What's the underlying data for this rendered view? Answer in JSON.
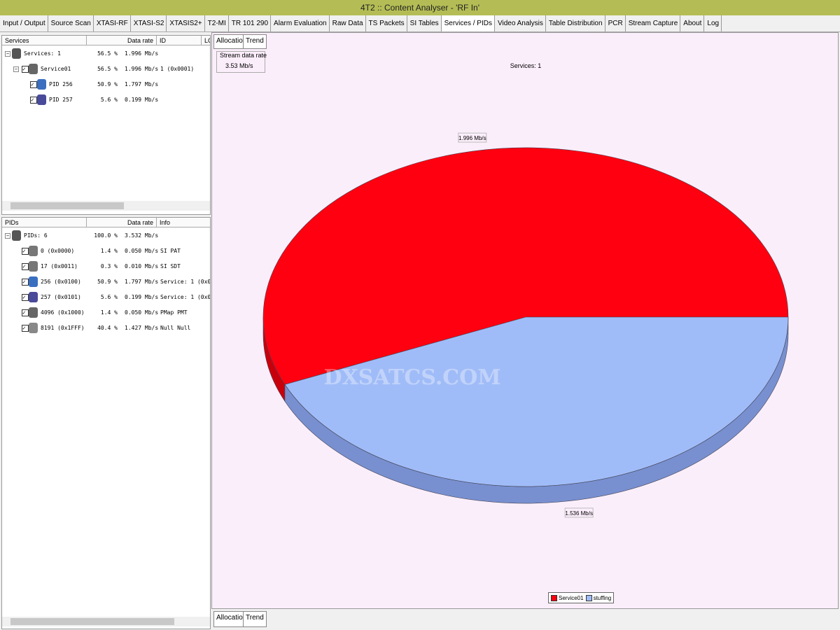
{
  "window": {
    "title": "4T2 :: Content Analyser - 'RF In'"
  },
  "tabs": [
    "Input / Output",
    "Source Scan",
    "XTASI-RF",
    "XTASI-S2",
    "XTASIS2+",
    "T2-MI",
    "TR 101 290",
    "Alarm Evaluation",
    "Raw Data",
    "TS Packets",
    "SI Tables",
    "Services / PIDs",
    "Video Analysis",
    "Table Distribution",
    "PCR",
    "Stream Capture",
    "About",
    "Log"
  ],
  "services": {
    "columns": [
      "Services",
      "Data rate",
      "ID",
      "LC"
    ],
    "rows": [
      {
        "name": "Services: 1",
        "percent": "56.5 %",
        "rate": "1.996 Mb/s"
      },
      {
        "name": "Service01",
        "percent": "56.5 %",
        "rate": "1.996 Mb/s",
        "id": "1 (0x0001)"
      },
      {
        "name": "PID 256",
        "percent": "50.9 %",
        "rate": "1.797 Mb/s"
      },
      {
        "name": "PID 257",
        "percent": "5.6 %",
        "rate": "0.199 Mb/s"
      }
    ]
  },
  "pids": {
    "columns": [
      "PIDs",
      "Data rate",
      "Info"
    ],
    "rows": [
      {
        "name": "PIDs: 6",
        "percent": "100.0 %",
        "rate": "3.532 Mb/s"
      },
      {
        "name": "0 (0x0000)",
        "percent": "1.4 %",
        "rate": "0.050 Mb/s",
        "info": "SI PAT"
      },
      {
        "name": "17 (0x0011)",
        "percent": "0.3 %",
        "rate": "0.010 Mb/s",
        "info": "SI SDT"
      },
      {
        "name": "256 (0x0100)",
        "percent": "50.9 %",
        "rate": "1.797 Mb/s",
        "info": "Service: 1 (0x00"
      },
      {
        "name": "257 (0x0101)",
        "percent": "5.6 %",
        "rate": "0.199 Mb/s",
        "info": "Service: 1 (0x00"
      },
      {
        "name": "4096 (0x1000)",
        "percent": "1.4 %",
        "rate": "0.050 Mb/s",
        "info": "PMap PMT"
      },
      {
        "name": "8191 (0x1FFF)",
        "percent": "40.4 %",
        "rate": "1.427 Mb/s",
        "info": "Null Null"
      }
    ]
  },
  "chart_tabs": [
    "Allocation",
    "Trend"
  ],
  "stream_rate": {
    "label": "Stream data rate",
    "value": "3.53 Mb/s"
  },
  "watermark": "DXSATCS.COM",
  "chart_data": {
    "type": "pie",
    "title": "Services: 1",
    "categories": [
      "Service01",
      "stuffing"
    ],
    "values": [
      1.996,
      1.536
    ],
    "value_labels": [
      "1.996 Mb/s",
      "1.536 Mb/s"
    ],
    "colors": [
      "#ff0010",
      "#a0bcf8"
    ],
    "side_colors": [
      "#c8000c",
      "#7890d0"
    ]
  }
}
